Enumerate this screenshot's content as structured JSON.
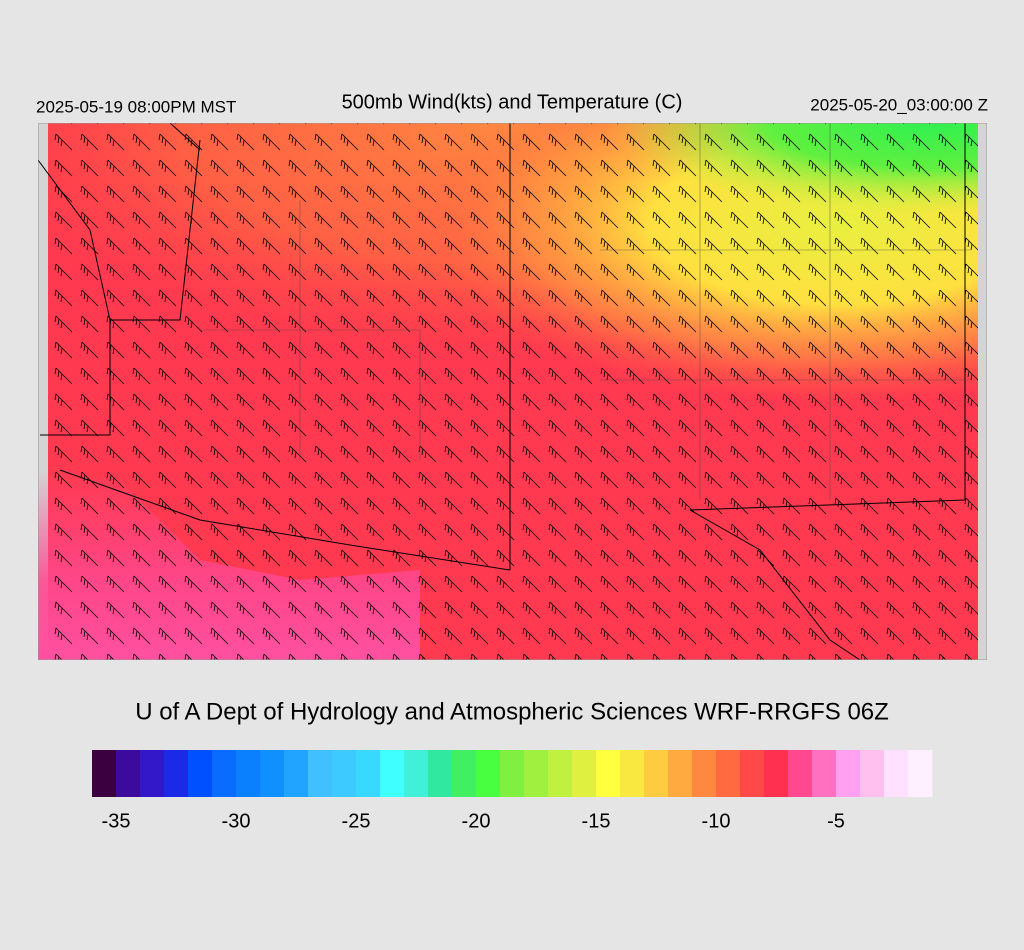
{
  "header": {
    "left": "2025-05-19 08:00PM MST",
    "title": "500mb Wind(kts) and Temperature (C)",
    "right": "2025-05-20_03:00:00 Z"
  },
  "credit": "U of A Dept of Hydrology and Atmospheric Sciences WRF-RRGFS 06Z",
  "colorbar": {
    "clim": [
      -36,
      -1
    ],
    "ticks": [
      -35,
      -30,
      -25,
      -20,
      -15,
      -10,
      -5
    ],
    "colors": [
      "#3a0040",
      "#3c0a9c",
      "#3218c8",
      "#1a2ae6",
      "#0050ff",
      "#0a6cff",
      "#0a80ff",
      "#1090ff",
      "#20a4ff",
      "#40c0ff",
      "#3ccaff",
      "#38d8ff",
      "#40ffff",
      "#40f0d8",
      "#30e8a0",
      "#40f060",
      "#48ff40",
      "#80f040",
      "#a0f040",
      "#c0f040",
      "#e0f040",
      "#ffff40",
      "#f8e840",
      "#ffcc40",
      "#ffaa40",
      "#ff8840",
      "#ff6a40",
      "#ff4848",
      "#ff3050",
      "#ff4890",
      "#ff70c0",
      "#ffa0f0",
      "#ffc0f0",
      "#ffe0ff",
      "#fff0ff"
    ]
  }
}
